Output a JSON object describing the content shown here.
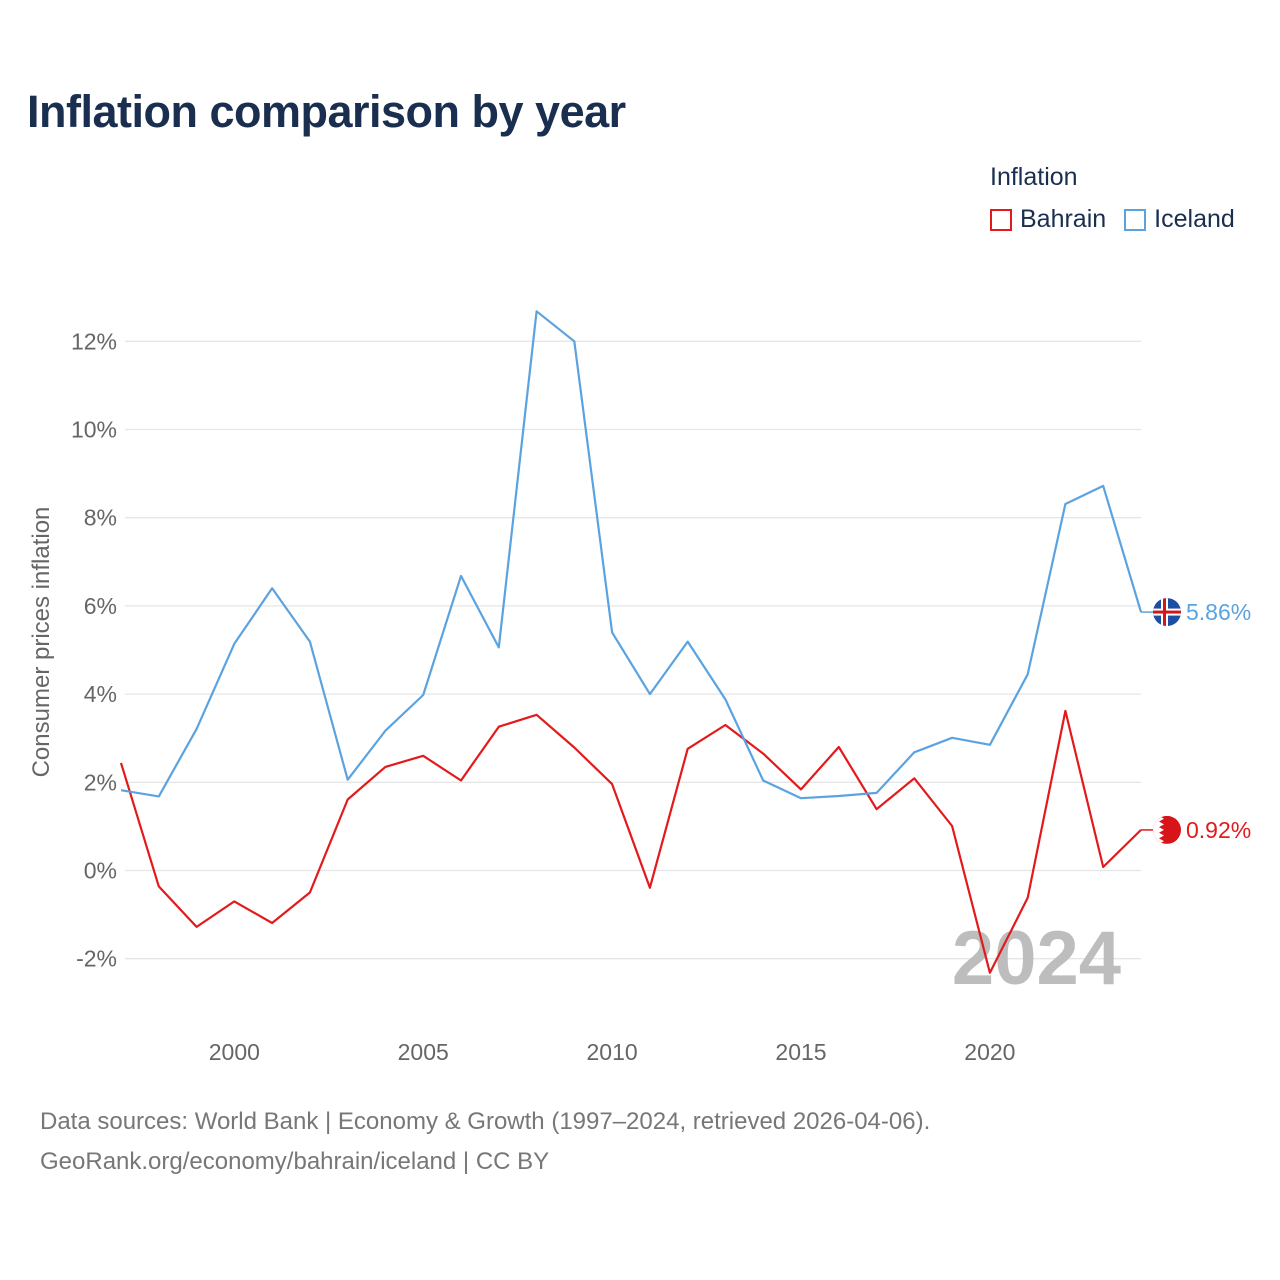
{
  "header": {
    "title": "Inflation comparison by year"
  },
  "legend": {
    "title": "Inflation"
  },
  "chart_data": {
    "type": "line",
    "title": "Inflation comparison by year",
    "xlabel": "",
    "ylabel": "Consumer prices inflation",
    "xlim": [
      1997,
      2024
    ],
    "ylim": [
      -3,
      13.5
    ],
    "x": [
      1997,
      1998,
      1999,
      2000,
      2001,
      2002,
      2003,
      2004,
      2005,
      2006,
      2007,
      2008,
      2009,
      2010,
      2011,
      2012,
      2013,
      2014,
      2015,
      2016,
      2017,
      2018,
      2019,
      2020,
      2021,
      2022,
      2023,
      2024
    ],
    "x_ticks": [
      2000,
      2005,
      2010,
      2015,
      2020
    ],
    "y_ticks": [
      -2,
      0,
      2,
      4,
      6,
      8,
      10,
      12
    ],
    "y_tick_suffix": "%",
    "grid": true,
    "legend_position": "top-right",
    "year_watermark": "2024",
    "series": [
      {
        "name": "Bahrain",
        "color": "#e31a1c",
        "flag_icon": "bahrain-flag-icon",
        "end_label": "0.92%",
        "values": [
          2.44,
          -0.36,
          -1.28,
          -0.7,
          -1.19,
          -0.5,
          1.61,
          2.35,
          2.6,
          2.04,
          3.26,
          3.53,
          2.79,
          1.96,
          -0.39,
          2.76,
          3.3,
          2.65,
          1.84,
          2.8,
          1.39,
          2.09,
          1.01,
          -2.32,
          -0.62,
          3.62,
          0.08,
          0.92
        ]
      },
      {
        "name": "Iceland",
        "color": "#5ba3e0",
        "flag_icon": "iceland-flag-icon",
        "end_label": "5.86%",
        "values": [
          1.82,
          1.68,
          3.21,
          5.14,
          6.4,
          5.19,
          2.06,
          3.17,
          3.98,
          6.68,
          5.06,
          12.68,
          12.0,
          5.4,
          4.0,
          5.19,
          3.88,
          2.04,
          1.64,
          1.69,
          1.76,
          2.68,
          3.01,
          2.85,
          4.45,
          8.31,
          8.72,
          5.86
        ]
      }
    ]
  },
  "footer": {
    "line1": "Data sources: World Bank | Economy & Growth (1997–2024, retrieved 2026-04-06).",
    "line2": "GeoRank.org/economy/bahrain/iceland | CC BY"
  }
}
